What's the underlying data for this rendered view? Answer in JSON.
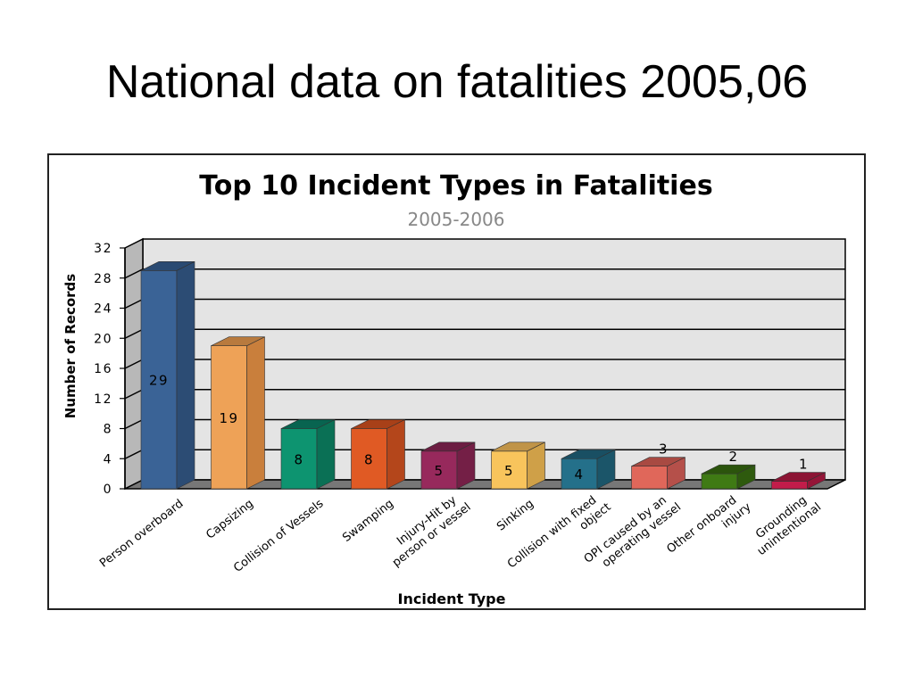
{
  "slide": {
    "title": "National data on fatalities 2005,06"
  },
  "chart_data": {
    "type": "bar",
    "title": "Top 10 Incident Types in Fatalities",
    "subtitle": "2005-2006",
    "xlabel": "Incident Type",
    "ylabel": "Number of Records",
    "ylim": [
      0,
      32
    ],
    "yticks": [
      0,
      4,
      8,
      12,
      16,
      20,
      24,
      28,
      32
    ],
    "grid": true,
    "categories": [
      "Person overboard",
      "Capsizing",
      "Collision of Vessels",
      "Swamping",
      "Injury-Hit by person or vessel",
      "Sinking",
      "Collision with fixed object",
      "OPI caused by an operating vessel",
      "Other onboard injury",
      "Grounding unintentional"
    ],
    "category_lines": [
      [
        "Person overboard"
      ],
      [
        "Capsizing"
      ],
      [
        "Collision of Vessels"
      ],
      [
        "Swamping"
      ],
      [
        "Injury-Hit by",
        "person or vessel"
      ],
      [
        "Sinking"
      ],
      [
        "Collision with fixed",
        "object"
      ],
      [
        "OPI caused by an",
        "operating vessel"
      ],
      [
        "Other onboard",
        "injury"
      ],
      [
        "Grounding",
        "unintentional"
      ]
    ],
    "values": [
      29,
      19,
      8,
      8,
      5,
      5,
      4,
      3,
      2,
      1
    ],
    "colors": [
      "#3a6396",
      "#eea257",
      "#0d9470",
      "#e05a24",
      "#97295c",
      "#f8c45c",
      "#24708a",
      "#e0675a",
      "#3f7a14",
      "#c21c4a"
    ],
    "shade_colors": [
      "#2c4c74",
      "#c97f3c",
      "#0a7055",
      "#b4461b",
      "#741f46",
      "#cfa048",
      "#1b5569",
      "#b5504a",
      "#2e5a0e",
      "#951538"
    ],
    "top_colors": [
      "#2a4a72",
      "#b87a3e",
      "#086450",
      "#a84018",
      "#6c1d42",
      "#c09448",
      "#194f63",
      "#a84a42",
      "#2b540c",
      "#8c1434"
    ]
  }
}
